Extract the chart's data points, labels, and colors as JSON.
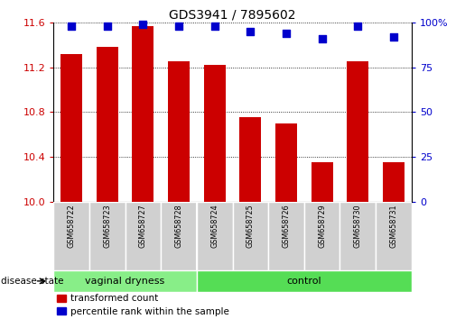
{
  "title": "GDS3941 / 7895602",
  "samples": [
    "GSM658722",
    "GSM658723",
    "GSM658727",
    "GSM658728",
    "GSM658724",
    "GSM658725",
    "GSM658726",
    "GSM658729",
    "GSM658730",
    "GSM658731"
  ],
  "red_values": [
    11.32,
    11.38,
    11.57,
    11.25,
    11.22,
    10.75,
    10.7,
    10.35,
    11.25,
    10.35
  ],
  "blue_values": [
    98,
    98,
    99,
    98,
    98,
    95,
    94,
    91,
    98,
    92
  ],
  "ylim_left": [
    10,
    11.6
  ],
  "ylim_right": [
    0,
    100
  ],
  "yticks_left": [
    10,
    10.4,
    10.8,
    11.2,
    11.6
  ],
  "yticks_right": [
    0,
    25,
    50,
    75,
    100
  ],
  "bar_color": "#CC0000",
  "dot_color": "#0000CC",
  "groups": [
    {
      "label": "vaginal dryness",
      "start": 0,
      "end": 4,
      "color": "#88EE88"
    },
    {
      "label": "control",
      "start": 4,
      "end": 10,
      "color": "#55DD55"
    }
  ],
  "group_label": "disease state",
  "legend_red": "transformed count",
  "legend_blue": "percentile rank within the sample",
  "background_color": "#ffffff",
  "tick_label_color_left": "#CC0000",
  "tick_label_color_right": "#0000CC",
  "bar_width": 0.6,
  "dot_size": 30,
  "sample_box_color": "#D0D0D0",
  "sample_box_edgecolor": "#ffffff"
}
